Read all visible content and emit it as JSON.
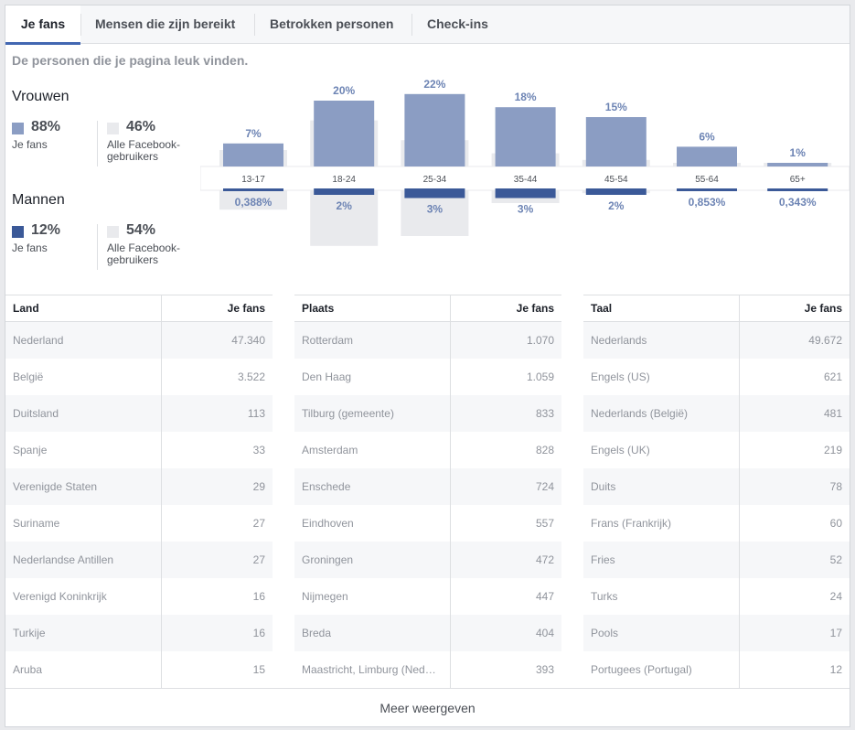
{
  "tabs": [
    {
      "label": "Je fans",
      "active": true
    },
    {
      "label": "Mensen die zijn bereikt",
      "active": false
    },
    {
      "label": "Betrokken personen",
      "active": false
    },
    {
      "label": "Check-ins",
      "active": false
    }
  ],
  "subtitle": "De personen die je pagina leuk vinden.",
  "women": {
    "title": "Vrouwen",
    "fans_pct": "88%",
    "fans_label": "Je fans",
    "all_pct": "46%",
    "all_label": "Alle Facebook-gebruikers",
    "fans_color": "#8b9dc3",
    "all_color": "#e9eaed"
  },
  "men": {
    "title": "Mannen",
    "fans_pct": "12%",
    "fans_label": "Je fans",
    "all_pct": "54%",
    "all_label": "Alle Facebook-gebruikers",
    "fans_color": "#3b5998",
    "all_color": "#e9eaed"
  },
  "chart_data": {
    "type": "bar",
    "categories": [
      "13-17",
      "18-24",
      "25-34",
      "35-44",
      "45-54",
      "55-64",
      "65+"
    ],
    "series": [
      {
        "values": [
          7,
          20,
          22,
          18,
          15,
          6,
          1
        ],
        "labels": [
          "7%",
          "20%",
          "22%",
          "18%",
          "15%",
          "6%",
          "1%"
        ],
        "color": "#8b9dc3"
      },
      {
        "values": [
          0.388,
          2,
          3,
          3,
          2,
          0.853,
          0.343
        ],
        "labels": [
          "0,388%",
          "2%",
          "3%",
          "3%",
          "2%",
          "0,853%",
          "0,343%"
        ],
        "color": "#3b5998"
      }
    ],
    "background_series": {
      "women": [
        5,
        14,
        8,
        4,
        2,
        1,
        1
      ],
      "men": [
        7,
        18,
        15,
        5,
        2,
        1,
        1
      ],
      "color": "#e9eaed"
    },
    "label_color": "#6d84b4"
  },
  "tables": [
    {
      "col1": "Land",
      "col2": "Je fans",
      "rows": [
        [
          "Nederland",
          "47.340"
        ],
        [
          "België",
          "3.522"
        ],
        [
          "Duitsland",
          "113"
        ],
        [
          "Spanje",
          "33"
        ],
        [
          "Verenigde Staten",
          "29"
        ],
        [
          "Suriname",
          "27"
        ],
        [
          "Nederlandse Antillen",
          "27"
        ],
        [
          "Verenigd Koninkrijk",
          "16"
        ],
        [
          "Turkije",
          "16"
        ],
        [
          "Aruba",
          "15"
        ]
      ]
    },
    {
      "col1": "Plaats",
      "col2": "Je fans",
      "rows": [
        [
          "Rotterdam",
          "1.070"
        ],
        [
          "Den Haag",
          "1.059"
        ],
        [
          "Tilburg (gemeente)",
          "833"
        ],
        [
          "Amsterdam",
          "828"
        ],
        [
          "Enschede",
          "724"
        ],
        [
          "Eindhoven",
          "557"
        ],
        [
          "Groningen",
          "472"
        ],
        [
          "Nijmegen",
          "447"
        ],
        [
          "Breda",
          "404"
        ],
        [
          "Maastricht, Limburg (Ned…",
          "393"
        ]
      ]
    },
    {
      "col1": "Taal",
      "col2": "Je fans",
      "rows": [
        [
          "Nederlands",
          "49.672"
        ],
        [
          "Engels (US)",
          "621"
        ],
        [
          "Nederlands (België)",
          "481"
        ],
        [
          "Engels (UK)",
          "219"
        ],
        [
          "Duits",
          "78"
        ],
        [
          "Frans (Frankrijk)",
          "60"
        ],
        [
          "Fries",
          "52"
        ],
        [
          "Turks",
          "24"
        ],
        [
          "Pools",
          "17"
        ],
        [
          "Portugees (Portugal)",
          "12"
        ]
      ]
    }
  ],
  "more_label": "Meer weergeven"
}
